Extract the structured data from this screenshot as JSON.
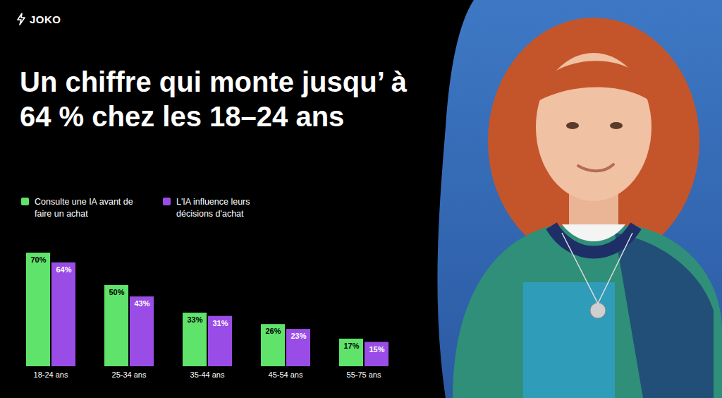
{
  "header": {
    "logo": "JOKO"
  },
  "chart_data": {
    "type": "bar",
    "title": "Un chiffre qui monte jusqu’ à 64 % chez les 18–24 ans",
    "categories": [
      "18-24 ans",
      "25-34 ans",
      "35-44 ans",
      "45-54 ans",
      "55-75 ans"
    ],
    "series": [
      {
        "name": "Consulte une IA avant de faire un achat",
        "color": "#5fe36b",
        "values": [
          70,
          50,
          33,
          26,
          17
        ],
        "value_labels": [
          "70%",
          "50%",
          "33%",
          "26%",
          "17%"
        ]
      },
      {
        "name": "L'IA influence leurs décisions d'achat",
        "color": "#9a4de6",
        "values": [
          64,
          43,
          31,
          23,
          15
        ],
        "value_labels": [
          "64%",
          "43%",
          "31%",
          "23%",
          "15%"
        ]
      }
    ],
    "ylim": [
      0,
      70
    ],
    "data_labels": true,
    "tick_labels": "x",
    "legend": "top-left"
  }
}
